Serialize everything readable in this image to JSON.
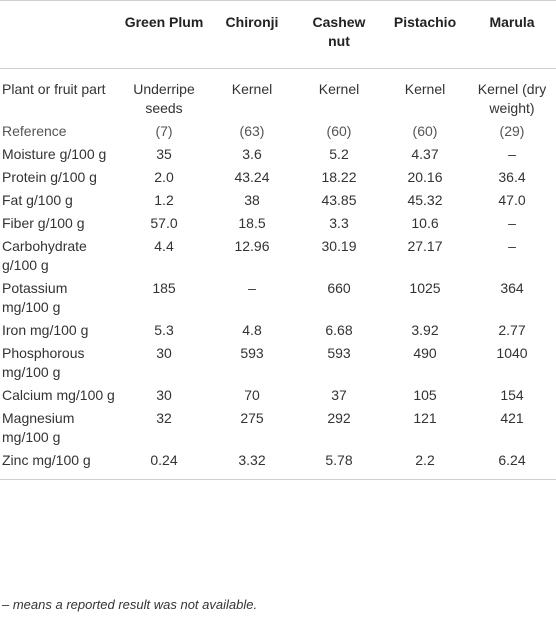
{
  "table": {
    "columns": [
      "",
      "Green Plum",
      "Chironji",
      "Cashew nut",
      "Pistachio",
      "Marula"
    ],
    "rows": [
      [
        "Plant or fruit part",
        "Underripe seeds",
        "Kernel",
        "Kernel",
        "Kernel",
        "Kernel (dry weight)"
      ],
      [
        "Reference",
        "(7)",
        "(63)",
        "(60)",
        "(60)",
        "(29)"
      ],
      [
        "Moisture g/100 g",
        "35",
        "3.6",
        "5.2",
        "4.37",
        "–"
      ],
      [
        "Protein g/100 g",
        "2.0",
        "43.24",
        "18.22",
        "20.16",
        "36.4"
      ],
      [
        "Fat g/100 g",
        "1.2",
        "38",
        "43.85",
        "45.32",
        "47.0"
      ],
      [
        "Fiber g/100 g",
        "57.0",
        "18.5",
        "3.3",
        "10.6",
        "–"
      ],
      [
        "Carbohydrate g/100 g",
        "4.4",
        "12.96",
        "30.19",
        "27.17",
        "–"
      ],
      [
        "Potassium mg/100 g",
        "185",
        "–",
        "660",
        "1025",
        "364"
      ],
      [
        "Iron mg/100 g",
        "5.3",
        "4.8",
        "6.68",
        "3.92",
        "2.77"
      ],
      [
        "Phosphorous mg/100 g",
        "30",
        "593",
        "593",
        "490",
        "1040"
      ],
      [
        "Calcium mg/100 g",
        "30",
        "70",
        "37",
        "105",
        "154"
      ],
      [
        "Magnesium mg/100 g",
        "32",
        "275",
        "292",
        "121",
        "421"
      ],
      [
        "Zinc mg/100 g",
        "0.24",
        "3.32",
        "5.78",
        "2.2",
        "6.24"
      ]
    ]
  },
  "footnote": "– means a reported result was not available."
}
